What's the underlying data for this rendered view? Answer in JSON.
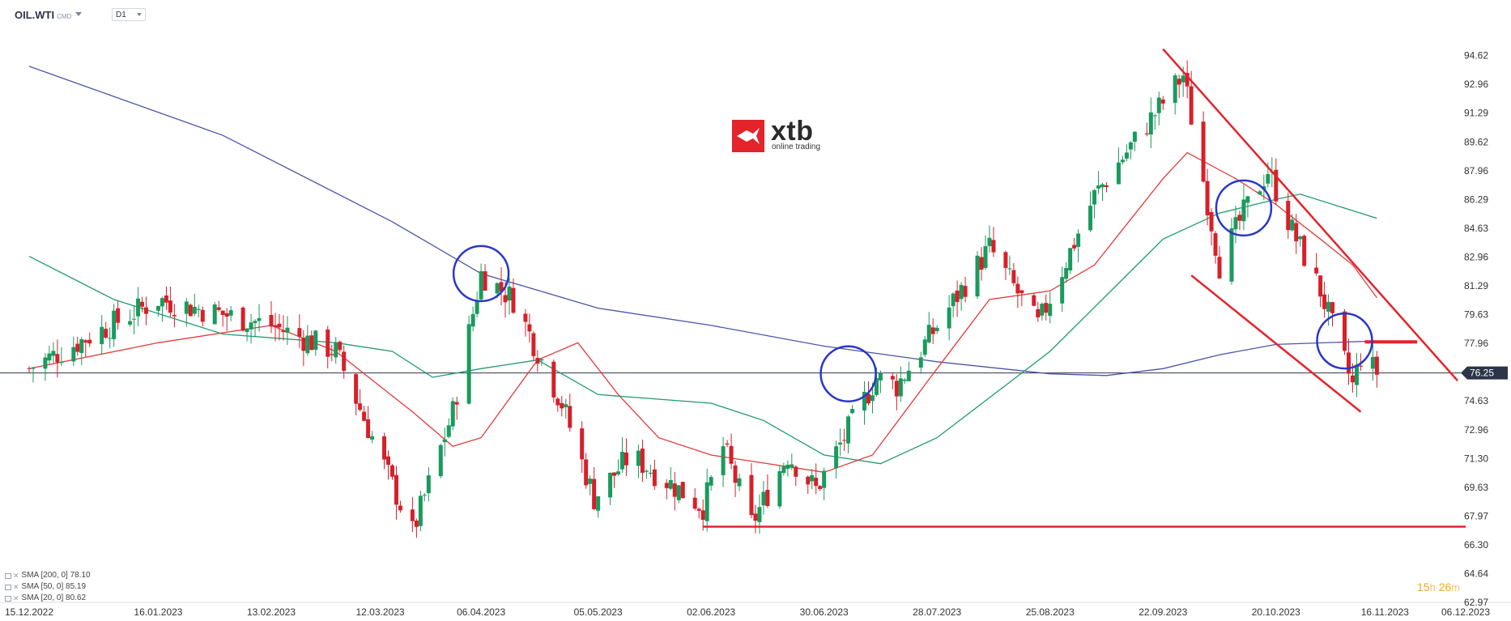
{
  "header": {
    "symbol": "OIL.WTI",
    "symbol_type": "CMD",
    "timeframe": "D1"
  },
  "logo": {
    "name": "xtb",
    "tagline": "online trading"
  },
  "indicators": [
    {
      "label": "SMA [200, 0]",
      "value": "78.10",
      "color": "#4a55a8"
    },
    {
      "label": "SMA [50, 0]",
      "value": "85.19",
      "color": "#1f9a6e"
    },
    {
      "label": "SMA [20, 0]",
      "value": "80.62",
      "color": "#e23a3a"
    }
  ],
  "timer": {
    "hours": "15",
    "h_unit": "h",
    "minutes": "26",
    "m_unit": "m"
  },
  "colors": {
    "up": "#1b9a5e",
    "down": "#d6202a",
    "annotation": "#e4232a",
    "circle": "#2b37c6",
    "price_line": "#2b3547"
  },
  "chart_data": {
    "type": "candlestick",
    "symbol": "OIL.WTI",
    "ylim": [
      62.97,
      96.29
    ],
    "y_ticks": [
      "94.62",
      "92.96",
      "91.29",
      "89.62",
      "87.96",
      "86.29",
      "84.63",
      "82.96",
      "81.29",
      "79.63",
      "77.96",
      "76.25",
      "74.63",
      "72.96",
      "71.30",
      "69.63",
      "67.97",
      "66.30",
      "64.64",
      "62.97"
    ],
    "current_price": "76.25",
    "x_labels": [
      "15.12.2022",
      "16.01.2023",
      "13.02.2023",
      "12.03.2023",
      "06.04.2023",
      "05.05.2023",
      "02.06.2023",
      "30.06.2023",
      "28.07.2023",
      "25.08.2023",
      "22.09.2023",
      "20.10.2023",
      "16.11.2023",
      "06.12.2023"
    ],
    "waypoints": [
      [
        "15.12.2022",
        76.5
      ],
      [
        "16.01.2023",
        80.5
      ],
      [
        "13.02.2023",
        79.0
      ],
      [
        "01.03.2023",
        77.5
      ],
      [
        "20.03.2023",
        67.0
      ],
      [
        "30.03.2023",
        74.0
      ],
      [
        "06.04.2023",
        82.0
      ],
      [
        "14.04.2023",
        80.5
      ],
      [
        "26.04.2023",
        74.5
      ],
      [
        "04.05.2023",
        69.0
      ],
      [
        "13.05.2023",
        71.5
      ],
      [
        "31.05.2023",
        68.5
      ],
      [
        "05.06.2023",
        72.0
      ],
      [
        "12.06.2023",
        67.5
      ],
      [
        "21.06.2023",
        71.5
      ],
      [
        "28.06.2023",
        69.5
      ],
      [
        "13.07.2023",
        76.0
      ],
      [
        "18.07.2023",
        75.5
      ],
      [
        "10.08.2023",
        83.5
      ],
      [
        "22.08.2023",
        79.0
      ],
      [
        "05.09.2023",
        86.5
      ],
      [
        "27.09.2023",
        93.5
      ],
      [
        "06.10.2023",
        82.5
      ],
      [
        "12.10.2023",
        85.5
      ],
      [
        "18.10.2023",
        88.0
      ],
      [
        "24.10.2023",
        84.5
      ],
      [
        "31.10.2023",
        81.0
      ],
      [
        "08.11.2023",
        75.5
      ],
      [
        "10.11.2023",
        77.2
      ],
      [
        "14.11.2023",
        76.3
      ]
    ],
    "sma": [
      {
        "name": "SMA [200, 0]",
        "period": 200,
        "color": "#4a55a8",
        "points": [
          [
            "15.12.2022",
            94.0
          ],
          [
            "01.02.2023",
            90.0
          ],
          [
            "15.03.2023",
            85.0
          ],
          [
            "06.04.2023",
            82.0
          ],
          [
            "05.05.2023",
            80.0
          ],
          [
            "02.06.2023",
            79.0
          ],
          [
            "30.06.2023",
            77.8
          ],
          [
            "28.07.2023",
            76.9
          ],
          [
            "25.08.2023",
            76.2
          ],
          [
            "08.09.2023",
            76.1
          ],
          [
            "22.09.2023",
            76.5
          ],
          [
            "06.10.2023",
            77.3
          ],
          [
            "20.10.2023",
            77.9
          ],
          [
            "14.11.2023",
            78.1
          ]
        ]
      },
      {
        "name": "SMA [50, 0]",
        "period": 50,
        "color": "#1f9a6e",
        "points": [
          [
            "15.12.2022",
            83.0
          ],
          [
            "05.01.2023",
            80.5
          ],
          [
            "01.02.2023",
            78.5
          ],
          [
            "01.03.2023",
            78.0
          ],
          [
            "15.03.2023",
            77.5
          ],
          [
            "25.03.2023",
            76.0
          ],
          [
            "06.04.2023",
            76.5
          ],
          [
            "20.04.2023",
            77.0
          ],
          [
            "05.05.2023",
            75.0
          ],
          [
            "02.06.2023",
            74.5
          ],
          [
            "15.06.2023",
            73.5
          ],
          [
            "30.06.2023",
            71.5
          ],
          [
            "14.07.2023",
            71.0
          ],
          [
            "28.07.2023",
            72.5
          ],
          [
            "25.08.2023",
            77.5
          ],
          [
            "22.09.2023",
            84.0
          ],
          [
            "06.10.2023",
            85.5
          ],
          [
            "20.10.2023",
            86.3
          ],
          [
            "26.10.2023",
            86.6
          ],
          [
            "14.11.2023",
            85.2
          ]
        ]
      },
      {
        "name": "SMA [20, 0]",
        "period": 20,
        "color": "#e23a3a",
        "points": [
          [
            "15.12.2022",
            76.5
          ],
          [
            "16.01.2023",
            78.0
          ],
          [
            "13.02.2023",
            79.0
          ],
          [
            "01.03.2023",
            77.5
          ],
          [
            "20.03.2023",
            74.0
          ],
          [
            "30.03.2023",
            72.0
          ],
          [
            "06.04.2023",
            72.5
          ],
          [
            "20.04.2023",
            77.0
          ],
          [
            "30.04.2023",
            78.0
          ],
          [
            "10.05.2023",
            75.0
          ],
          [
            "20.05.2023",
            72.5
          ],
          [
            "02.06.2023",
            71.5
          ],
          [
            "30.06.2023",
            70.5
          ],
          [
            "12.07.2023",
            71.5
          ],
          [
            "28.07.2023",
            76.5
          ],
          [
            "10.08.2023",
            80.5
          ],
          [
            "25.08.2023",
            81.0
          ],
          [
            "05.09.2023",
            82.5
          ],
          [
            "22.09.2023",
            87.5
          ],
          [
            "28.09.2023",
            89.0
          ],
          [
            "10.10.2023",
            87.5
          ],
          [
            "20.10.2023",
            86.0
          ],
          [
            "31.10.2023",
            84.0
          ],
          [
            "08.11.2023",
            82.5
          ],
          [
            "14.11.2023",
            80.6
          ]
        ]
      }
    ],
    "annotations": {
      "support_line": {
        "from": "31.05.2023",
        "to": "06.12.2023",
        "price": 67.35
      },
      "resistance_line": {
        "from": "22.09.2023",
        "to": "04.12.2023",
        "price_from": 95.0,
        "price_to": 75.8
      },
      "channel_lower": {
        "from": "29.09.2023",
        "to": "10.11.2023",
        "price_from": 81.9,
        "price_to": 74.0
      },
      "level_marker": {
        "from": "11.11.2023",
        "to": "24.11.2023",
        "price": 78.05
      },
      "circles": [
        {
          "date": "06.04.2023",
          "price": 82.0
        },
        {
          "date": "06.07.2023",
          "price": 76.2
        },
        {
          "date": "12.10.2023",
          "price": 85.8
        },
        {
          "date": "06.11.2023",
          "price": 78.1
        }
      ]
    }
  }
}
